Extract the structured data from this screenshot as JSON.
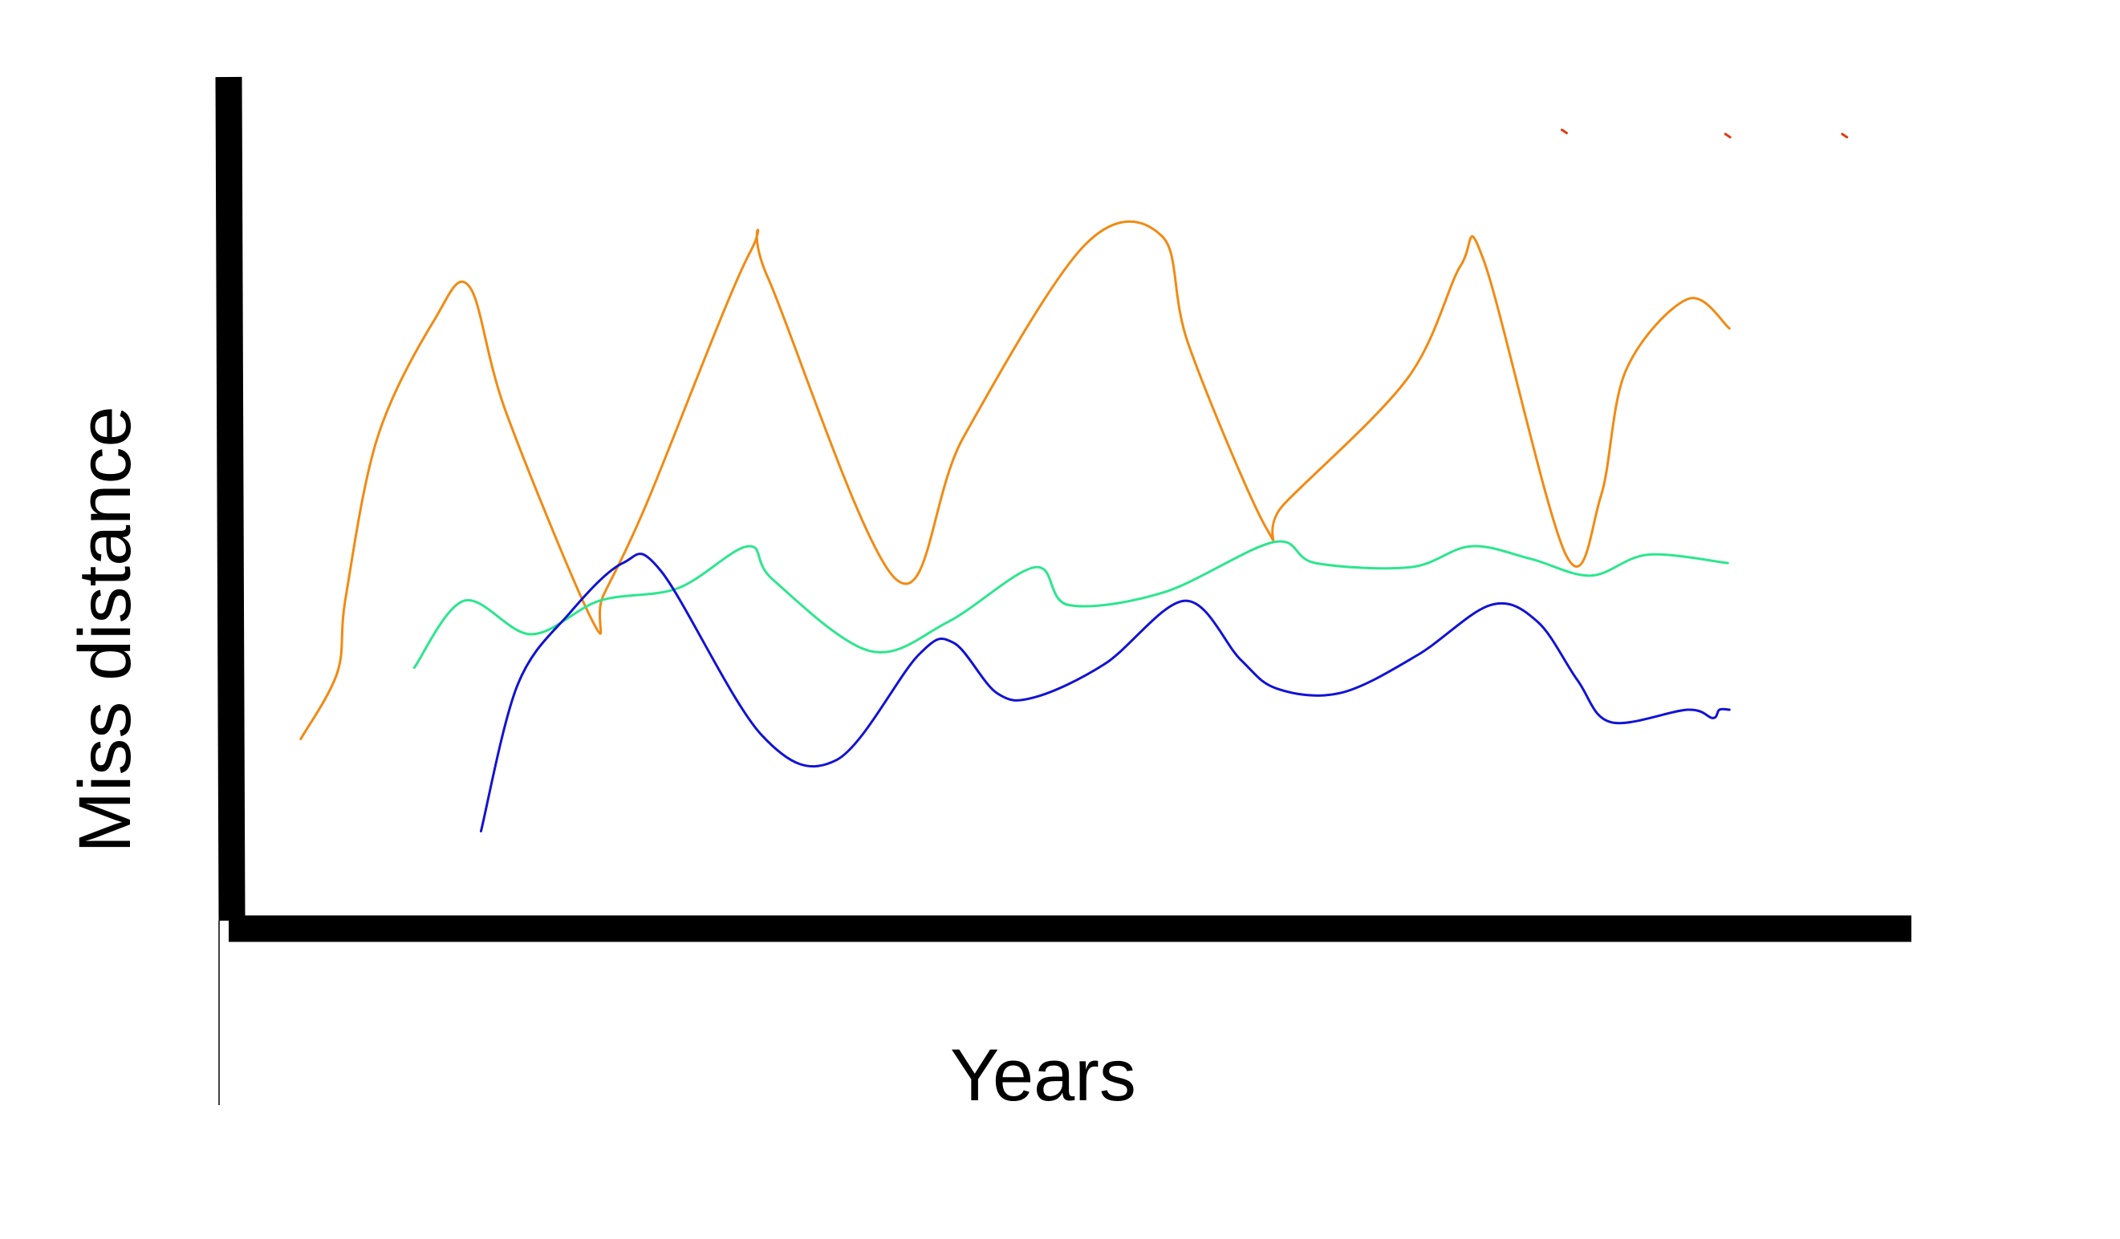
{
  "chart_data": {
    "type": "line",
    "title": "",
    "xlabel": "Years",
    "ylabel": "Miss distance",
    "xlim": [
      0,
      100
    ],
    "ylim": [
      0,
      100
    ],
    "grid": false,
    "legend": "none",
    "tick_labels": false,
    "series": [
      {
        "color": "#f28a12",
        "x": [
          3.5,
          5.7,
          6.2,
          8.1,
          11.5,
          13.6,
          15.8,
          21.0,
          21.6,
          24.2,
          30.4,
          31.5,
          39.2,
          43.2,
          50.5,
          55.1,
          56.7,
          61.4,
          62.4,
          69.8,
          73.0,
          74.4,
          79.3,
          81.4,
          82.9,
          86.6,
          89.1
        ],
        "y": [
          21.0,
          29.0,
          38.0,
          57.0,
          71.0,
          75.0,
          60.0,
          35.0,
          38.0,
          49.0,
          79.0,
          76.0,
          40.0,
          57.0,
          80.0,
          81.0,
          68.0,
          46.0,
          49.0,
          64.0,
          77.5,
          78.0,
          43.0,
          50.0,
          65.0,
          73.5,
          70.0
        ]
      },
      {
        "color": "#2ce68e",
        "x": [
          10.3,
          13.3,
          17.3,
          21.4,
          26.1,
          30.3,
          31.8,
          37.6,
          42.3,
          47.5,
          49.5,
          55.2,
          61.8,
          64.3,
          70.0,
          73.6,
          77.2,
          80.8,
          84.2,
          89.0
        ],
        "y": [
          29.5,
          37.5,
          33.5,
          37.5,
          39.0,
          44.0,
          40.0,
          31.5,
          35.0,
          41.5,
          37.0,
          38.5,
          44.5,
          42.0,
          41.5,
          44.0,
          42.5,
          40.5,
          43.0,
          42.0
        ]
      },
      {
        "color": "#1212d6",
        "x": [
          14.3,
          16.5,
          19.6,
          22.8,
          25.1,
          31.1,
          35.6,
          40.5,
          42.6,
          45.2,
          47.5,
          51.7,
          56.5,
          59.8,
          62.0,
          65.8,
          70.4,
          74.8,
          77.6,
          80.0,
          82.0,
          86.6,
          88.1,
          88.5,
          89.1
        ],
        "y": [
          10.0,
          27.5,
          36.0,
          42.0,
          41.0,
          21.5,
          18.5,
          31.0,
          32.5,
          26.5,
          26.0,
          30.0,
          37.5,
          30.5,
          27.0,
          26.5,
          31.0,
          37.0,
          35.0,
          28.0,
          23.0,
          24.5,
          23.5,
          24.5,
          24.5
        ]
      }
    ],
    "annotations": [
      {
        "color": "#e03a10",
        "x": 79.2,
        "y": 93.5
      },
      {
        "color": "#e03a10",
        "x": 89.0,
        "y": 93.0
      },
      {
        "color": "#e03a10",
        "x": 96.0,
        "y": 93.0
      }
    ]
  }
}
